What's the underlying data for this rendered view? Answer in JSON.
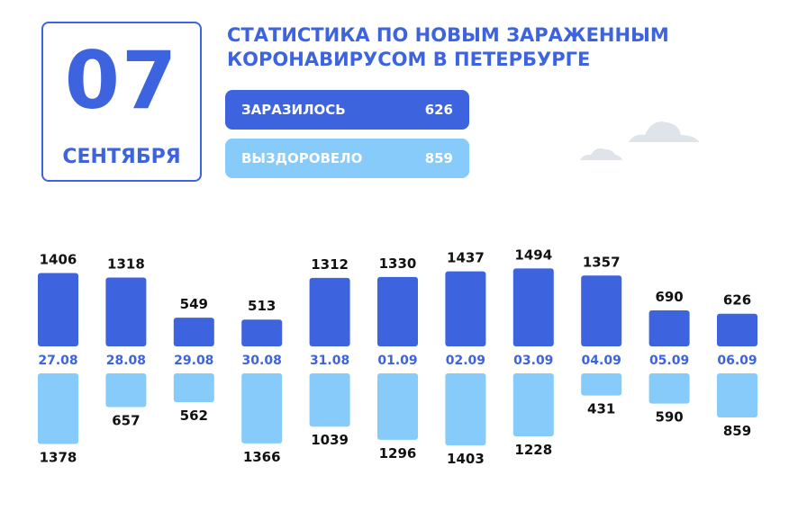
{
  "header": {
    "day": "07",
    "month": "СЕНТЯБРЯ",
    "title_line1": "СТАТИСТИКА ПО НОВЫМ ЗАРАЖЕННЫМ",
    "title_line2": "КОРОНАВИРУСОМ В ПЕТЕРБУРГЕ"
  },
  "summary": {
    "infected_label": "ЗАРАЗИЛОСЬ",
    "infected_value": "626",
    "recovered_label": "ВЫЗДОРОВЕЛО",
    "recovered_value": "859"
  },
  "colors": {
    "infected": "#3d64de",
    "recovered": "#86cbfa",
    "cloud": "#dfe3ea",
    "label": "#111111"
  },
  "decor": {
    "icons": [
      "cloud-icon",
      "cloud-icon"
    ]
  },
  "chart_data": {
    "type": "bar",
    "categories": [
      "27.08",
      "28.08",
      "29.08",
      "30.08",
      "31.08",
      "01.09",
      "02.09",
      "03.09",
      "04.09",
      "05.09",
      "06.09"
    ],
    "series": [
      {
        "name": "ЗАРАЗИЛОСЬ",
        "values": [
          1406,
          1318,
          549,
          513,
          1312,
          1330,
          1437,
          1494,
          1357,
          690,
          626
        ]
      },
      {
        "name": "ВЫЗДОРОВЕЛО",
        "values": [
          1378,
          657,
          562,
          1366,
          1039,
          1296,
          1403,
          1228,
          431,
          590,
          859
        ]
      }
    ],
    "legend": "none",
    "grid": false
  }
}
